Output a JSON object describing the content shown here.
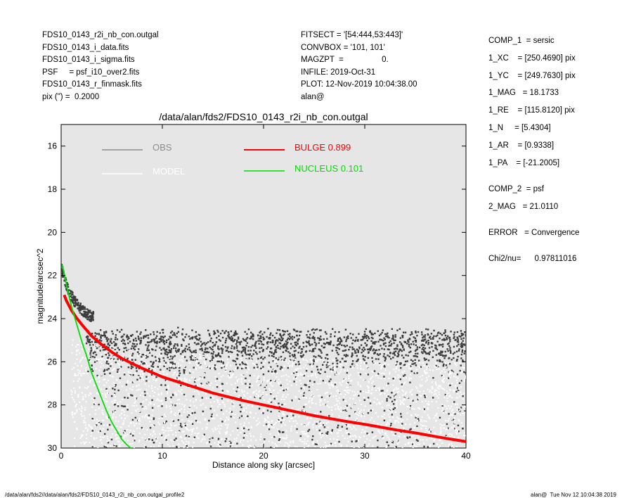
{
  "header_left": [
    "FDS10_0143_r2i_nb_con.outgal",
    "FDS10_0143_i_data.fits",
    "FDS10_0143_i_sigma.fits",
    "PSF     = psf_i10_over2.fits",
    "FDS10_0143_r_finmask.fits",
    "pix (\") =  0.2000"
  ],
  "header_mid": [
    "FITSECT = '[54:444,53:443]'",
    "CONVBOX = '101, 101'",
    "MAGZPT  =                 0.",
    "INFILE: 2019-Oct-31",
    "PLOT: 12-Nov-2019 10:04:38.00",
    "alan@"
  ],
  "params": [
    "COMP_1  = sersic",
    "1_XC    = [250.4690] pix",
    "1_YC    = [249.7630] pix",
    "1_MAG   = 18.1733",
    "1_RE    = [115.8120] pix",
    "1_N     = [5.4304]",
    "1_AR    = [0.9338]",
    "1_PA    = [-21.2005]",
    "",
    "COMP_2  = psf",
    "2_MAG   = 21.0110",
    "",
    "ERROR   = Convergence",
    "",
    "Chi2/nu=      0.97811016"
  ],
  "footer_left": "/data/alan/fds2//data/alan/fds2/FDS10_0143_r2i_nb_con.outgal_profile2",
  "footer_right": "alan@  Tue Nov 12 10:04:38 2019",
  "chart_data": {
    "type": "scatter",
    "title": "/data/alan/fds2/FDS10_0143_r2i_nb_con.outgal",
    "xlabel": "Distance along sky [arcsec]",
    "ylabel": "magnitude/arcsec^2",
    "xlim": [
      0,
      40
    ],
    "ylim": [
      30,
      15
    ],
    "y_inverted": true,
    "xticks": [
      0,
      10,
      20,
      30,
      40
    ],
    "yticks": [
      16,
      18,
      20,
      22,
      24,
      26,
      28,
      30
    ],
    "background": "#e6e6e6",
    "legend": [
      {
        "label": "OBS",
        "color": "#8c8c8c"
      },
      {
        "label": "MODEL",
        "color": "#ffffff"
      },
      {
        "label": "BULGE  0.899",
        "color": "#ff0000"
      },
      {
        "label": "NUCLEUS  0.101",
        "color": "#00dd00"
      }
    ],
    "series": [
      {
        "name": "BULGE  0.899",
        "kind": "line",
        "color": "#ff0000",
        "x": [
          0.3,
          0.5,
          1,
          1.5,
          2,
          3,
          4,
          5,
          6,
          8,
          10,
          12,
          15,
          18,
          20,
          22,
          25,
          28,
          30,
          33,
          35,
          38,
          40
        ],
        "y": [
          22.9,
          23.15,
          23.6,
          23.95,
          24.25,
          24.8,
          25.2,
          25.55,
          25.85,
          26.3,
          26.7,
          27.0,
          27.45,
          27.8,
          28.0,
          28.2,
          28.5,
          28.75,
          28.9,
          29.15,
          29.3,
          29.55,
          29.7
        ]
      },
      {
        "name": "NUCLEUS  0.101",
        "kind": "line",
        "color": "#00dd00",
        "x": [
          0.1,
          0.3,
          0.6,
          1,
          1.5,
          2,
          2.5,
          3,
          3.5,
          4,
          4.5,
          5,
          5.5,
          6,
          6.5,
          7
        ],
        "y": [
          21.5,
          21.9,
          22.6,
          23.4,
          24.2,
          25.0,
          25.7,
          26.5,
          27.1,
          27.7,
          28.3,
          28.8,
          29.2,
          29.6,
          29.85,
          30.05
        ]
      },
      {
        "name": "OBS",
        "kind": "scatter",
        "color": "#404040",
        "profile": "mag ~ 21.8 + 2.6*(1-exp(-x/1.6)); scatter band x>3: mag 24-30, densest near 25, upper envelope ~24.3"
      },
      {
        "name": "MODEL",
        "kind": "scatter",
        "color": "#ffffff",
        "profile": "white points spread below observed band, mag 25.5-30 across x 1-40"
      }
    ]
  }
}
